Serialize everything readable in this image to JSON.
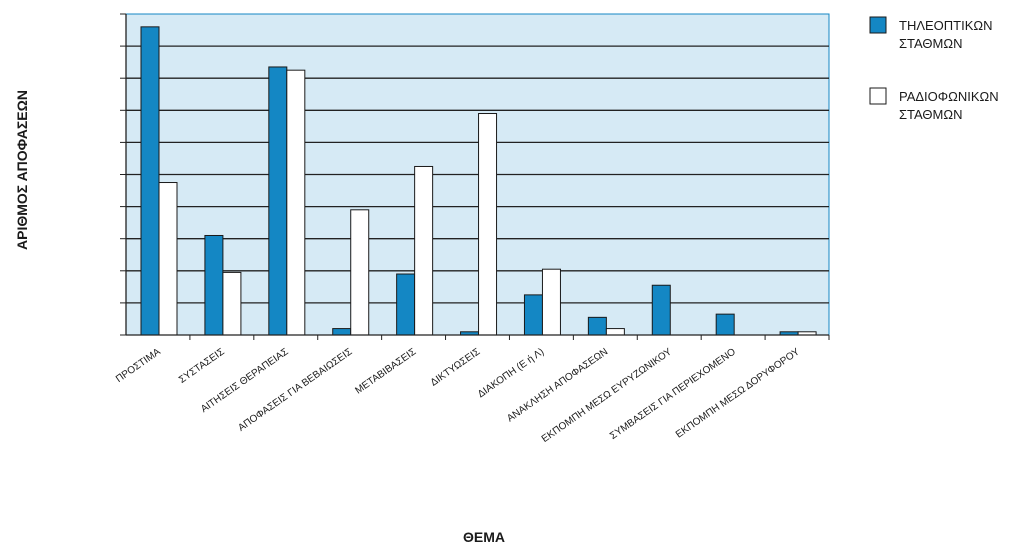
{
  "chart_data": {
    "type": "bar",
    "categories": [
      "ΠΡΟΣΤΙΜΑ",
      "ΣΥΣΤΑΣΕΙΣ",
      "ΑΙΤΗΣΕΙΣ ΘΕΡΑΠΕΙΑΣ",
      "ΑΠΟΦΑΣΕΙΣ ΓΙΑ ΒΕΒΑΙΩΣΕΙΣ",
      "ΜΕΤΑΒΙΒΑΣΕΙΣ",
      "ΔΙΚΤΥΩΣΕΙΣ",
      "ΔΙΑΚΟΠΗ (Ε ή Λ)",
      "ΑΝΑΚΛΗΣΗ ΑΠΟΦΑΣΕΩΝ",
      "ΕΚΠΟΜΠΗ ΜΕΣΩ ΕΥΡΥΖΩΝΙΚΟΥ",
      "ΣΥΜΒΑΣΕΙΣ ΓΙΑ ΠΕΡΙΕΧΟΜΕΝΟ",
      "ΕΚΠΟΜΠΗ ΜΕΣΩ ΔΟΡΥΦΟΡΟΥ"
    ],
    "series": [
      {
        "name": "ΤΗΛΕΟΠΤΙΚΩΝ ΣΤΑΘΜΩΝ",
        "color": "#1487c4",
        "values": [
          9.6,
          3.1,
          8.35,
          0.2,
          1.9,
          0.1,
          1.25,
          0.55,
          1.55,
          0.65,
          0.1
        ]
      },
      {
        "name": "ΡΑΔΙΟΦΩΝΙΚΩΝ ΣΤΑΘΜΩΝ",
        "color": "#ffffff",
        "values": [
          4.75,
          1.95,
          8.25,
          3.9,
          5.25,
          6.9,
          2.05,
          0.2,
          0,
          0,
          0.1
        ]
      }
    ],
    "legend_labels": [
      [
        "ΤΗΛΕΟΠΤΙΚΩΝ",
        "ΣΤΑΘΜΩΝ"
      ],
      [
        "ΡΑΔΙΟΦΩΝΙΚΩΝ",
        "ΣΤΑΘΜΩΝ"
      ]
    ],
    "xlabel": "ΘΕΜΑ",
    "ylabel": "ΑΡΙΘΜΟΣ ΑΠΟΦΑΣΕΩΝ",
    "ylim": [
      0,
      10
    ],
    "yticks": [
      0,
      1,
      2,
      3,
      4,
      5,
      6,
      7,
      8,
      9,
      10
    ],
    "ytick_labels_shown": false,
    "grid": true,
    "plot_background": "#d6eaf5",
    "legend_position": "right"
  }
}
